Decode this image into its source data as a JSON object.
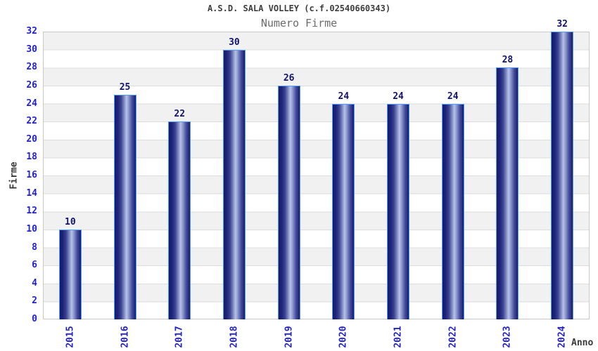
{
  "chart_data": {
    "type": "bar",
    "title": "A.S.D. SALA VOLLEY (c.f.02540660343)",
    "subtitle": "Numero Firme",
    "xlabel": "Anno",
    "ylabel": "Firme",
    "categories": [
      "2015",
      "2016",
      "2017",
      "2018",
      "2019",
      "2020",
      "2021",
      "2022",
      "2023",
      "2024"
    ],
    "values": [
      10,
      25,
      22,
      30,
      26,
      24,
      24,
      24,
      28,
      32
    ],
    "ylim": [
      0,
      32
    ],
    "ytick_step": 2,
    "legend": "none",
    "grid": "horizontal-alternating-bands",
    "colors": {
      "tick_text": "#2222cc",
      "value_label_text": "#13136b",
      "bar_border": "#4f9cfe",
      "bar_dark": "#161b6e",
      "bar_highlight": "#b8c2e8",
      "band_gray": "#f1f1f1",
      "band_white": "#ffffff",
      "plot_border": "#c9c9c9",
      "title_text": "#3c3c3c",
      "subtitle_text": "#6b6b6b",
      "axis_label_text": "#3a3a3a"
    }
  }
}
